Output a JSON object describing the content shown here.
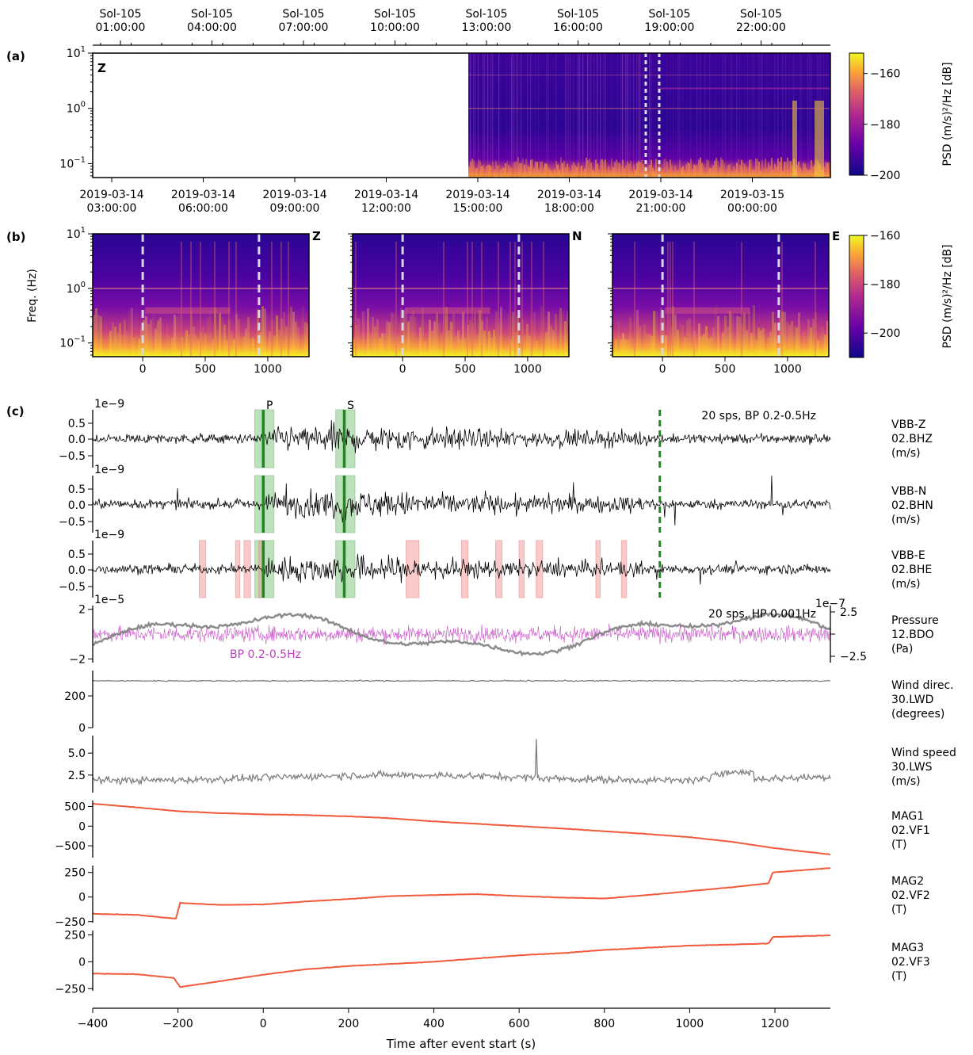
{
  "panel_labels": [
    "(a)",
    "(b)",
    "(c)"
  ],
  "chart_data": [
    {
      "id": "a",
      "type": "heatmap",
      "component": "Z",
      "top_ticks": [
        "Sol-105\n01:00:00",
        "Sol-105\n04:00:00",
        "Sol-105\n07:00:00",
        "Sol-105\n10:00:00",
        "Sol-105\n13:00:00",
        "Sol-105\n16:00:00",
        "Sol-105\n19:00:00",
        "Sol-105\n22:00:00"
      ],
      "bottom_ticks": [
        "2019-03-14\n03:00:00",
        "2019-03-14\n06:00:00",
        "2019-03-14\n09:00:00",
        "2019-03-14\n12:00:00",
        "2019-03-14\n15:00:00",
        "2019-03-14\n18:00:00",
        "2019-03-14\n21:00:00",
        "2019-03-15\n00:00:00"
      ],
      "yticks": [
        {
          "base": "10",
          "exp": "1",
          "value": 10
        },
        {
          "base": "10",
          "exp": "0",
          "value": 1
        },
        {
          "base": "10",
          "exp": "−1",
          "value": 0.1
        }
      ],
      "ylim": [
        0.056,
        10
      ],
      "yscale": "log",
      "data_start_time": "2019-03-14 15:00:00",
      "event_window_marker_times": [
        "2019-03-14 21:00:00",
        "2019-03-14 21:30:00"
      ],
      "colorbar": {
        "label": "PSD (m/s)²/Hz [dB]",
        "ticks": [
          "−160",
          "−180",
          "−200"
        ],
        "range": [
          -200,
          -152
        ]
      }
    },
    {
      "id": "b",
      "type": "heatmap",
      "ylabel": "Freq. (Hz)",
      "yscale": "log",
      "ylim": [
        0.056,
        10
      ],
      "yticks": [
        {
          "base": "10",
          "exp": "1",
          "value": 10
        },
        {
          "base": "10",
          "exp": "0",
          "value": 1
        },
        {
          "base": "10",
          "exp": "−1",
          "value": 0.1
        }
      ],
      "xlim": [
        -400,
        1330
      ],
      "xticks": [
        "0",
        "500",
        "1000"
      ],
      "event_markers_s": [
        0,
        930
      ],
      "subplots": [
        {
          "component": "Z"
        },
        {
          "component": "N"
        },
        {
          "component": "E"
        }
      ],
      "colorbar": {
        "label": "PSD (m/s)²/Hz [dB]",
        "ticks": [
          "−160",
          "−180",
          "−200"
        ],
        "range": [
          -210,
          -160
        ]
      }
    },
    {
      "id": "c",
      "type": "line",
      "xlabel": "Time after event start (s)",
      "xlim": [
        -400,
        1330
      ],
      "xticks": [
        "−400",
        "−200",
        "0",
        "200",
        "400",
        "600",
        "800",
        "1000",
        "1200"
      ],
      "phase_picks": [
        {
          "name": "P",
          "t": 0
        },
        {
          "name": "S",
          "t": 190
        }
      ],
      "green_windows": [
        [
          -20,
          25
        ],
        [
          170,
          215
        ]
      ],
      "end_marker_s": 930,
      "glitch_windows_e": [
        [
          -150,
          -135
        ],
        [
          -65,
          -55
        ],
        [
          -45,
          -30
        ],
        [
          -10,
          0
        ],
        [
          335,
          365
        ],
        [
          465,
          480
        ],
        [
          545,
          560
        ],
        [
          600,
          612
        ],
        [
          640,
          655
        ],
        [
          780,
          790
        ],
        [
          840,
          852
        ]
      ],
      "traces": [
        {
          "id": "vbbz",
          "label": [
            "VBB-Z",
            "02.BHZ",
            "(m/s)"
          ],
          "scale": "1e−9",
          "yticks": [
            "0.5",
            "0.0",
            "−0.5"
          ],
          "ylim": [
            -0.85,
            0.85
          ],
          "annotation": "20 sps, BP 0.2-0.5Hz",
          "color": "#000000"
        },
        {
          "id": "vbbn",
          "label": [
            "VBB-N",
            "02.BHN",
            "(m/s)"
          ],
          "scale": "1e−9",
          "yticks": [
            "0.5",
            "0.0",
            "−0.5"
          ],
          "ylim": [
            -0.85,
            0.85
          ],
          "color": "#000000"
        },
        {
          "id": "vbbe",
          "label": [
            "VBB-E",
            "02.BHE",
            "(m/s)"
          ],
          "scale": "1e−9",
          "yticks": [
            "0.5",
            "0.0",
            "−0.5"
          ],
          "ylim": [
            -0.85,
            0.85
          ],
          "color": "#000000"
        },
        {
          "id": "pressure",
          "label": [
            "Pressure",
            "12.BDO",
            "(Pa)"
          ],
          "scale": "1e−5",
          "right_scale": "1e−7",
          "yticks": [
            "2",
            "−2"
          ],
          "right_yticks": [
            "2.5",
            "−2.5"
          ],
          "ylim": [
            -2.3,
            2.3
          ],
          "annotation": "20 sps, HP 0.001Hz",
          "overlay_label": "BP 0.2-0.5Hz",
          "color": "#808080",
          "overlay_color": "#c040c0"
        },
        {
          "id": "winddir",
          "label": [
            "Wind direc.",
            "30.LWD",
            "(degrees)"
          ],
          "yticks": [
            "200",
            "0"
          ],
          "ylim": [
            0,
            360
          ],
          "mean": 295,
          "color": "#808080"
        },
        {
          "id": "windspeed",
          "label": [
            "Wind speed",
            "30.LWS",
            "(m/s)"
          ],
          "yticks": [
            "5.0",
            "2.5"
          ],
          "ylim": [
            0.5,
            7
          ],
          "color": "#808080"
        },
        {
          "id": "mag1",
          "label": [
            "MAG1",
            "02.VF1",
            "(T)"
          ],
          "yticks": [
            "500",
            "0",
            "−500"
          ],
          "ylim": [
            -800,
            650
          ],
          "color": "#f05a3c",
          "points": [
            [
              -400,
              570
            ],
            [
              -300,
              480
            ],
            [
              -200,
              380
            ],
            [
              -100,
              330
            ],
            [
              0,
              300
            ],
            [
              100,
              280
            ],
            [
              200,
              250
            ],
            [
              300,
              200
            ],
            [
              400,
              120
            ],
            [
              500,
              60
            ],
            [
              600,
              0
            ],
            [
              700,
              -60
            ],
            [
              800,
              -130
            ],
            [
              900,
              -200
            ],
            [
              1000,
              -280
            ],
            [
              1100,
              -400
            ],
            [
              1200,
              -560
            ],
            [
              1330,
              -720
            ]
          ]
        },
        {
          "id": "mag2",
          "label": [
            "MAG2",
            "02.VF2",
            "(T)"
          ],
          "yticks": [
            "250",
            "0",
            "−250"
          ],
          "ylim": [
            -260,
            320
          ],
          "color": "#f05a3c",
          "points": [
            [
              -400,
              -170
            ],
            [
              -300,
              -180
            ],
            [
              -205,
              -220
            ],
            [
              -195,
              -60
            ],
            [
              -100,
              -80
            ],
            [
              0,
              -75
            ],
            [
              100,
              -45
            ],
            [
              200,
              -20
            ],
            [
              300,
              10
            ],
            [
              400,
              20
            ],
            [
              500,
              30
            ],
            [
              600,
              10
            ],
            [
              700,
              -5
            ],
            [
              800,
              -15
            ],
            [
              900,
              20
            ],
            [
              1000,
              60
            ],
            [
              1100,
              100
            ],
            [
              1185,
              140
            ],
            [
              1195,
              250
            ],
            [
              1330,
              295
            ]
          ]
        },
        {
          "id": "mag3",
          "label": [
            "MAG3",
            "02.VF3",
            "(T)"
          ],
          "yticks": [
            "250",
            "0",
            "−250"
          ],
          "ylim": [
            -270,
            290
          ],
          "color": "#f05a3c",
          "points": [
            [
              -400,
              -110
            ],
            [
              -300,
              -115
            ],
            [
              -210,
              -150
            ],
            [
              -195,
              -235
            ],
            [
              -100,
              -180
            ],
            [
              0,
              -120
            ],
            [
              100,
              -70
            ],
            [
              200,
              -40
            ],
            [
              300,
              -20
            ],
            [
              400,
              0
            ],
            [
              500,
              30
            ],
            [
              600,
              60
            ],
            [
              700,
              80
            ],
            [
              800,
              110
            ],
            [
              900,
              130
            ],
            [
              1000,
              150
            ],
            [
              1100,
              160
            ],
            [
              1185,
              170
            ],
            [
              1195,
              230
            ],
            [
              1330,
              245
            ]
          ]
        }
      ]
    }
  ]
}
